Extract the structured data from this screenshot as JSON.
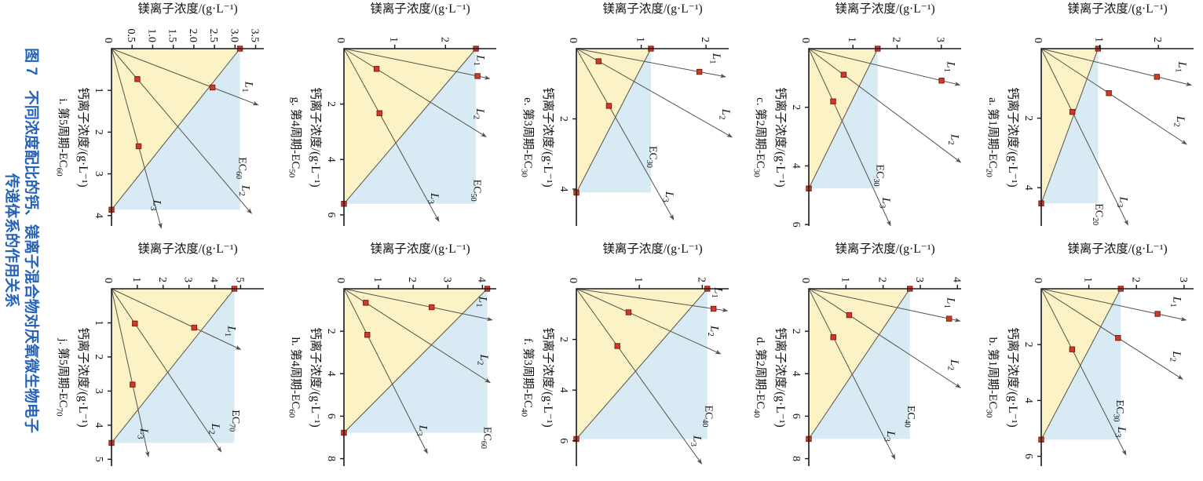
{
  "figure": {
    "caption_line1": "图 7　不同浓度配比的钙、镁离子混合物对厌氧微生物电子",
    "caption_line2": "传递体系的作用关系",
    "caption_color": "#2563B8"
  },
  "colors": {
    "region_yellow": "#FBF3C6",
    "region_blue": "#D8EAF4",
    "ray_line": "#56524B",
    "axis": "#1A1A1A",
    "marker_fill": "#CE3A28",
    "marker_stroke": "#801E10",
    "text": "#111111"
  },
  "axis_labels": {
    "x": "钙离子浓度/(g·L⁻¹)",
    "y": "镁离子浓度/(g·L⁻¹)"
  },
  "chart_data": [
    {
      "id": "a",
      "type": "line",
      "caption": "a. 第1周期-EC",
      "caption_sub": "20",
      "xlabel": "钙离子浓度/(g·L⁻¹)",
      "ylabel": "镁离子浓度/(g·L⁻¹)",
      "x_max": 5.1,
      "y_max": 2.6,
      "zero_label": "0",
      "x_ticks": [
        {
          "v": 2,
          "t": "2"
        },
        {
          "v": 4,
          "t": "4"
        }
      ],
      "y_ticks": [
        {
          "v": 1,
          "t": "1"
        },
        {
          "v": 2,
          "t": "2"
        }
      ],
      "ec": {
        "ca_intercept": 4.45,
        "mg_intercept": 0.97,
        "label": "EC",
        "label_sub": "20",
        "label_ca": 4.45,
        "label_mg": 0.93
      },
      "lines": [
        {
          "name": "L",
          "sub": "1",
          "tip_ca": 1.05,
          "tip_mg": 2.56,
          "marker_ca": 0.81
        },
        {
          "name": "L",
          "sub": "2",
          "tip_ca": 2.75,
          "tip_mg": 2.48,
          "marker_ca": 1.28
        },
        {
          "name": "L",
          "sub": "3",
          "tip_ca": 5.07,
          "tip_mg": 1.48,
          "marker_ca": 1.82
        }
      ]
    },
    {
      "id": "b",
      "type": "line",
      "caption": "b. 第1周期-EC",
      "caption_sub": "30",
      "xlabel": "钙离子浓度/(g·L⁻¹)",
      "ylabel": "镁离子浓度/(g·L⁻¹)",
      "x_max": 6.35,
      "y_max": 3.2,
      "zero_label": "0",
      "x_ticks": [
        {
          "v": 2,
          "t": "2"
        },
        {
          "v": 4,
          "t": "4"
        },
        {
          "v": 6,
          "t": "6"
        }
      ],
      "y_ticks": [
        {
          "v": 1,
          "t": "1"
        },
        {
          "v": 2,
          "t": "2"
        },
        {
          "v": 3,
          "t": "3"
        }
      ],
      "ec": {
        "ca_intercept": 5.4,
        "mg_intercept": 1.67,
        "label": "EC",
        "label_sub": "30",
        "label_ca": 3.98,
        "label_mg": 1.58
      },
      "lines": [
        {
          "name": "L",
          "sub": "1",
          "tip_ca": 1.12,
          "tip_mg": 3.04,
          "marker_ca": 0.9
        },
        {
          "name": "L",
          "sub": "2",
          "tip_ca": 3.24,
          "tip_mg": 2.97,
          "marker_ca": 1.76
        },
        {
          "name": "L",
          "sub": "3",
          "tip_ca": 5.95,
          "tip_mg": 1.78,
          "marker_ca": 2.17
        }
      ]
    },
    {
      "id": "c",
      "type": "line",
      "caption": "c. 第2周期-EC",
      "caption_sub": "30",
      "xlabel": "钙离子浓度/(g·L⁻¹)",
      "ylabel": "镁离子浓度/(g·L⁻¹)",
      "x_max": 6.05,
      "y_max": 3.45,
      "zero_label": "0",
      "x_ticks": [
        {
          "v": 2,
          "t": "2"
        },
        {
          "v": 4,
          "t": "4"
        },
        {
          "v": 6,
          "t": "6"
        }
      ],
      "y_ticks": [
        {
          "v": 1,
          "t": "1"
        },
        {
          "v": 2,
          "t": "2"
        },
        {
          "v": 3,
          "t": "3"
        }
      ],
      "ec": {
        "ca_intercept": 4.77,
        "mg_intercept": 1.56,
        "label": "EC",
        "label_sub": "30",
        "label_ca": 3.95,
        "label_mg": 1.54
      },
      "lines": [
        {
          "name": "L",
          "sub": "1",
          "tip_ca": 1.24,
          "tip_mg": 3.42,
          "marker_ca": 1.09
        },
        {
          "name": "L",
          "sub": "2",
          "tip_ca": 3.88,
          "tip_mg": 3.44,
          "marker_ca": 0.89
        },
        {
          "name": "L",
          "sub": "3",
          "tip_ca": 6.04,
          "tip_mg": 1.85,
          "marker_ca": 1.8
        }
      ]
    },
    {
      "id": "d",
      "type": "line",
      "caption": "d. 第2周期-EC",
      "caption_sub": "40",
      "xlabel": "钙离子浓度/(g·L⁻¹)",
      "ylabel": "镁离子浓度/(g·L⁻¹)",
      "x_max": 8.35,
      "y_max": 4.1,
      "zero_label": "0",
      "x_ticks": [
        {
          "v": 2,
          "t": "2"
        },
        {
          "v": 4,
          "t": "4"
        },
        {
          "v": 6,
          "t": "6"
        },
        {
          "v": 8,
          "t": "8"
        }
      ],
      "y_ticks": [
        {
          "v": 1,
          "t": "1"
        },
        {
          "v": 2,
          "t": "2"
        },
        {
          "v": 3,
          "t": "3"
        },
        {
          "v": 4,
          "t": "4"
        }
      ],
      "ec": {
        "ca_intercept": 7.07,
        "mg_intercept": 2.72,
        "label": "EC",
        "label_sub": "40",
        "label_ca": 5.5,
        "label_mg": 2.66
      },
      "lines": [
        {
          "name": "L",
          "sub": "1",
          "tip_ca": 1.52,
          "tip_mg": 4.07,
          "marker_ca": 1.41
        },
        {
          "name": "L",
          "sub": "2",
          "tip_ca": 4.66,
          "tip_mg": 4.08,
          "marker_ca": 1.24
        },
        {
          "name": "L",
          "sub": "3",
          "tip_ca": 8.02,
          "tip_mg": 2.32,
          "marker_ca": 2.28
        }
      ]
    },
    {
      "id": "e",
      "type": "line",
      "caption": "e. 第3周期-EC",
      "caption_sub": "30",
      "xlabel": "钙离子浓度/(g·L⁻¹)",
      "ylabel": "镁离子浓度/(g·L⁻¹)",
      "x_max": 5.05,
      "y_max": 2.35,
      "zero_label": "0",
      "x_ticks": [
        {
          "v": 2,
          "t": "2"
        },
        {
          "v": 4,
          "t": "4"
        }
      ],
      "y_ticks": [
        {
          "v": 1,
          "t": "1"
        },
        {
          "v": 2,
          "t": "2"
        }
      ],
      "ec": {
        "ca_intercept": 4.1,
        "mg_intercept": 1.15,
        "label": "EC",
        "label_sub": "30",
        "label_ca": 2.77,
        "label_mg": 1.13
      },
      "lines": [
        {
          "name": "L",
          "sub": "1",
          "tip_ca": 0.8,
          "tip_mg": 2.3,
          "marker_ca": 0.66
        },
        {
          "name": "L",
          "sub": "2",
          "tip_ca": 2.52,
          "tip_mg": 2.4,
          "marker_ca": 0.36
        },
        {
          "name": "L",
          "sub": "3",
          "tip_ca": 4.87,
          "tip_mg": 1.5,
          "marker_ca": 1.63
        }
      ]
    },
    {
      "id": "f",
      "type": "line",
      "caption": "f. 第3周期-EC",
      "caption_sub": "40",
      "xlabel": "钙离子浓度/(g·L⁻¹)",
      "ylabel": "镁离子浓度/(g·L⁻¹)",
      "x_max": 7.0,
      "y_max": 2.42,
      "zero_label": "0",
      "x_ticks": [
        {
          "v": 2,
          "t": "2"
        },
        {
          "v": 4,
          "t": "4"
        },
        {
          "v": 6,
          "t": "6"
        }
      ],
      "y_ticks": [
        {
          "v": 1,
          "t": "1"
        },
        {
          "v": 2,
          "t": "2"
        }
      ],
      "ec": {
        "ca_intercept": 5.93,
        "mg_intercept": 2.08,
        "label": "EC",
        "label_sub": "40",
        "label_ca": 4.6,
        "label_mg": 2.05
      },
      "lines": [
        {
          "name": "L",
          "sub": "1",
          "tip_ca": 0.87,
          "tip_mg": 2.4,
          "marker_ca": 0.79
        },
        {
          "name": "L",
          "sub": "2",
          "tip_ca": 2.57,
          "tip_mg": 2.29,
          "marker_ca": 0.93
        },
        {
          "name": "L",
          "sub": "3",
          "tip_ca": 6.91,
          "tip_mg": 1.99,
          "marker_ca": 2.26
        }
      ]
    },
    {
      "id": "g",
      "type": "line",
      "caption": "g. 第4周期-EC",
      "caption_sub": "50",
      "xlabel": "钙离子浓度/(g·L⁻¹)",
      "ylabel": "镁离子浓度/(g·L⁻¹)",
      "x_max": 6.4,
      "y_max": 3.0,
      "zero_label": "0",
      "x_ticks": [
        {
          "v": 2,
          "t": "2"
        },
        {
          "v": 4,
          "t": "4"
        },
        {
          "v": 6,
          "t": "6"
        }
      ],
      "y_ticks": [
        {
          "v": 1,
          "t": "1"
        },
        {
          "v": 2,
          "t": "2"
        }
      ],
      "ec": {
        "ca_intercept": 5.6,
        "mg_intercept": 2.6,
        "label": "EC",
        "label_sub": "50",
        "label_ca": 4.72,
        "label_mg": 2.56
      },
      "lines": [
        {
          "name": "L",
          "sub": "1",
          "tip_ca": 1.08,
          "tip_mg": 2.87,
          "marker_ca": 0.99
        },
        {
          "name": "L",
          "sub": "2",
          "tip_ca": 3.18,
          "tip_mg": 2.8,
          "marker_ca": 0.73
        },
        {
          "name": "L",
          "sub": "3",
          "tip_ca": 6.23,
          "tip_mg": 1.87,
          "marker_ca": 2.33
        }
      ]
    },
    {
      "id": "h",
      "type": "line",
      "caption": "h. 第4周期-EC",
      "caption_sub": "60",
      "xlabel": "钙离子浓度/(g·L⁻¹)",
      "ylabel": "镁离子浓度/(g·L⁻¹)",
      "x_max": 8.35,
      "y_max": 4.4,
      "zero_label": "0",
      "x_ticks": [
        {
          "v": 2,
          "t": "2"
        },
        {
          "v": 4,
          "t": "4"
        },
        {
          "v": 6,
          "t": "6"
        },
        {
          "v": 8,
          "t": "8"
        }
      ],
      "y_ticks": [
        {
          "v": 1,
          "t": "1"
        },
        {
          "v": 2,
          "t": "2"
        },
        {
          "v": 3,
          "t": "3"
        },
        {
          "v": 4,
          "t": "4"
        }
      ],
      "ec": {
        "ca_intercept": 6.78,
        "mg_intercept": 4.14,
        "label": "EC",
        "label_sub": "60",
        "label_ca": 6.5,
        "label_mg": 4.05
      },
      "lines": [
        {
          "name": "L",
          "sub": "1",
          "tip_ca": 1.47,
          "tip_mg": 4.28,
          "marker_ca": 0.87
        },
        {
          "name": "L",
          "sub": "2",
          "tip_ca": 4.42,
          "tip_mg": 4.22,
          "marker_ca": 0.66
        },
        {
          "name": "L",
          "sub": "3",
          "tip_ca": 7.75,
          "tip_mg": 2.41,
          "marker_ca": 2.17
        }
      ]
    },
    {
      "id": "i",
      "type": "line",
      "caption": "i. 第5周期-EC",
      "caption_sub": "60",
      "xlabel": "钙离子浓度/(g·L⁻¹)",
      "ylabel": "镁离子浓度/(g·L⁻¹)",
      "x_max": 4.25,
      "y_max": 3.7,
      "zero_label": "0",
      "x_ticks": [
        {
          "v": 1,
          "t": "1"
        },
        {
          "v": 2,
          "t": "2"
        },
        {
          "v": 3,
          "t": "3"
        },
        {
          "v": 4,
          "t": "4"
        }
      ],
      "y_ticks": [
        {
          "v": 0.5,
          "t": "0.5"
        },
        {
          "v": 1,
          "t": "1.0"
        },
        {
          "v": 1.5,
          "t": "1.5"
        },
        {
          "v": 2,
          "t": "2.0"
        },
        {
          "v": 2.5,
          "t": "2.5"
        },
        {
          "v": 3,
          "t": "3.0"
        },
        {
          "v": 3.5,
          "t": "3.5"
        }
      ],
      "ec": {
        "ca_intercept": 3.86,
        "mg_intercept": 3.12,
        "label": "EC",
        "label_sub": "60",
        "label_ca": 2.6,
        "label_mg": 3.1
      },
      "lines": [
        {
          "name": "L",
          "sub": "1",
          "tip_ca": 1.35,
          "tip_mg": 3.56,
          "marker_ca": 0.93
        },
        {
          "name": "L",
          "sub": "2",
          "tip_ca": 3.95,
          "tip_mg": 3.4,
          "marker_ca": 0.73
        },
        {
          "name": "L",
          "sub": "3",
          "tip_ca": 4.3,
          "tip_mg": 1.21,
          "marker_ca": 2.34
        }
      ]
    },
    {
      "id": "j",
      "type": "line",
      "caption": "j. 第5周期-EC",
      "caption_sub": "70",
      "xlabel": "钙离子浓度/(g·L⁻¹)",
      "ylabel": "镁离子浓度/(g·L⁻¹)",
      "x_max": 5.2,
      "y_max": 5.9,
      "zero_label": "0",
      "x_ticks": [
        {
          "v": 1,
          "t": "1"
        },
        {
          "v": 2,
          "t": "2"
        },
        {
          "v": 3,
          "t": "3"
        },
        {
          "v": 4,
          "t": "4"
        },
        {
          "v": 5,
          "t": "5"
        }
      ],
      "y_ticks": [
        {
          "v": 1,
          "t": "1"
        },
        {
          "v": 2,
          "t": "2"
        },
        {
          "v": 3,
          "t": "3"
        },
        {
          "v": 4,
          "t": "4"
        },
        {
          "v": 5,
          "t": "5"
        }
      ],
      "ec": {
        "ca_intercept": 4.52,
        "mg_intercept": 4.76,
        "label": "EC",
        "label_sub": "70",
        "label_ca": 3.55,
        "label_mg": 4.68
      },
      "lines": [
        {
          "name": "L",
          "sub": "1",
          "tip_ca": 1.78,
          "tip_mg": 5.0,
          "marker_ca": 1.14
        },
        {
          "name": "L",
          "sub": "2",
          "tip_ca": 4.78,
          "tip_mg": 4.25,
          "marker_ca": 1.02
        },
        {
          "name": "L",
          "sub": "3",
          "tip_ca": 4.92,
          "tip_mg": 1.43,
          "marker_ca": 2.81
        }
      ]
    }
  ]
}
